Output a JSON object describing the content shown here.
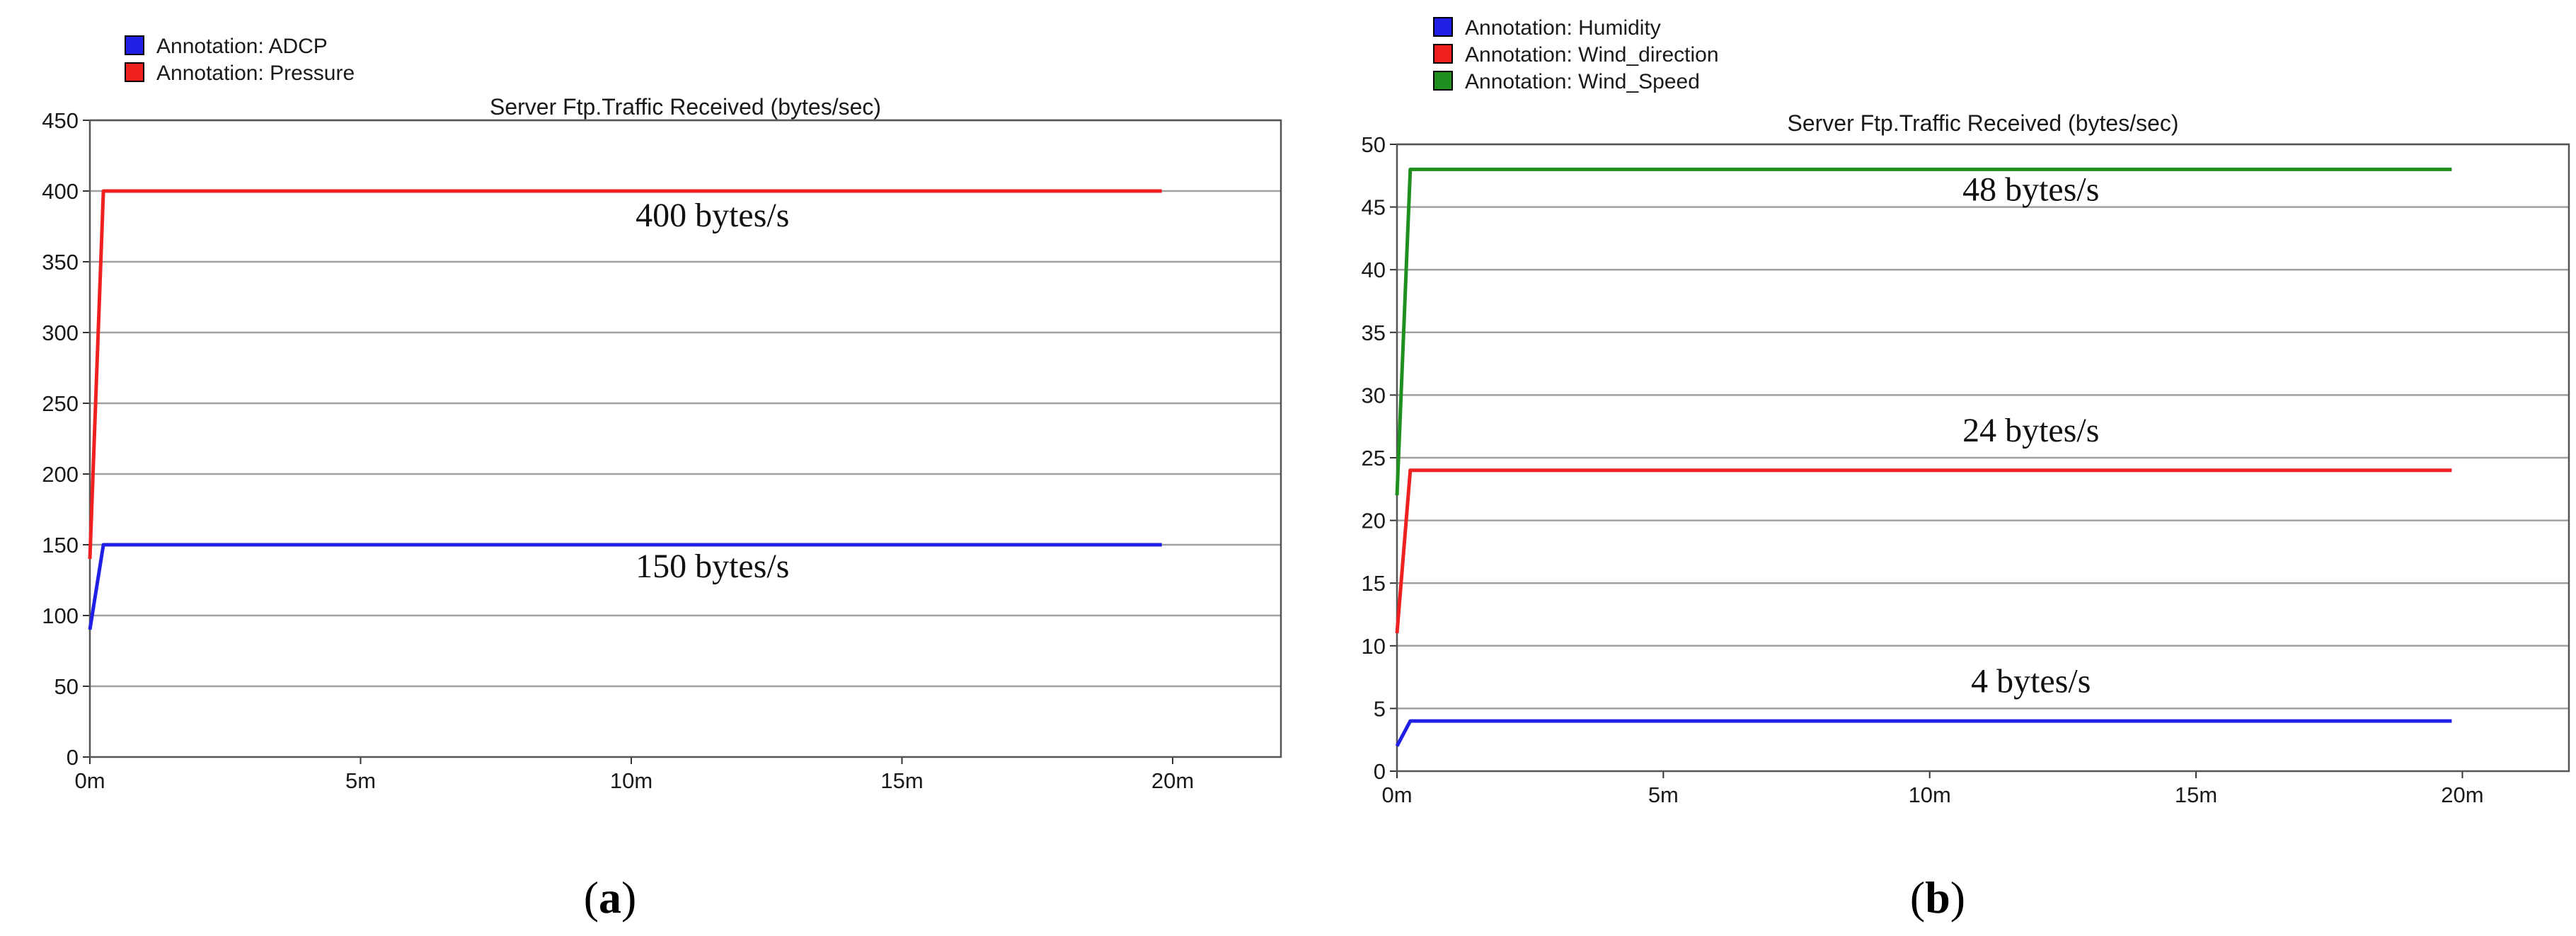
{
  "chart_data": [
    {
      "type": "line",
      "panel_label": "a",
      "title": "Server Ftp.Traffic Received (bytes/sec)",
      "x_ticks": [
        "0m",
        "5m",
        "10m",
        "15m",
        "20m"
      ],
      "xlim": [
        0,
        22
      ],
      "ylim": [
        0,
        450
      ],
      "y_ticks": [
        0,
        50,
        100,
        150,
        200,
        250,
        300,
        350,
        400,
        450
      ],
      "grid": true,
      "legend_position": "top-left",
      "series": [
        {
          "name": "Annotation: ADCP",
          "color": "#1f1fe6",
          "points": [
            [
              0,
              90
            ],
            [
              0.25,
              150
            ],
            [
              19.8,
              150
            ]
          ]
        },
        {
          "name": "Annotation: Pressure",
          "color": "#ee2020",
          "points": [
            [
              0,
              140
            ],
            [
              0.25,
              400
            ],
            [
              19.8,
              400
            ]
          ]
        }
      ],
      "annotations": [
        {
          "text": "400 bytes/s",
          "x": 11.5,
          "y": 375
        },
        {
          "text": "150 bytes/s",
          "x": 11.5,
          "y": 127
        }
      ]
    },
    {
      "type": "line",
      "panel_label": "b",
      "title": "Server Ftp.Traffic Received (bytes/sec)",
      "x_ticks": [
        "0m",
        "5m",
        "10m",
        "15m",
        "20m"
      ],
      "xlim": [
        0,
        22
      ],
      "ylim": [
        0,
        50
      ],
      "y_ticks": [
        0,
        5,
        10,
        15,
        20,
        25,
        30,
        35,
        40,
        45,
        50
      ],
      "grid": true,
      "legend_position": "top-left",
      "series": [
        {
          "name": "Annotation: Humidity",
          "color": "#1f1fe6",
          "points": [
            [
              0,
              2
            ],
            [
              0.25,
              4
            ],
            [
              19.8,
              4
            ]
          ]
        },
        {
          "name": "Annotation: Wind_direction",
          "color": "#ee2020",
          "points": [
            [
              0,
              11
            ],
            [
              0.25,
              24
            ],
            [
              19.8,
              24
            ]
          ]
        },
        {
          "name": "Annotation: Wind_Speed",
          "color": "#1f8f1f",
          "points": [
            [
              0,
              22
            ],
            [
              0.25,
              48
            ],
            [
              19.8,
              48
            ]
          ]
        }
      ],
      "annotations": [
        {
          "text": "48 bytes/s",
          "x": 11.9,
          "y": 45.5
        },
        {
          "text": "24 bytes/s",
          "x": 11.9,
          "y": 26.3
        },
        {
          "text": "4 bytes/s",
          "x": 11.9,
          "y": 6.3
        }
      ]
    }
  ]
}
